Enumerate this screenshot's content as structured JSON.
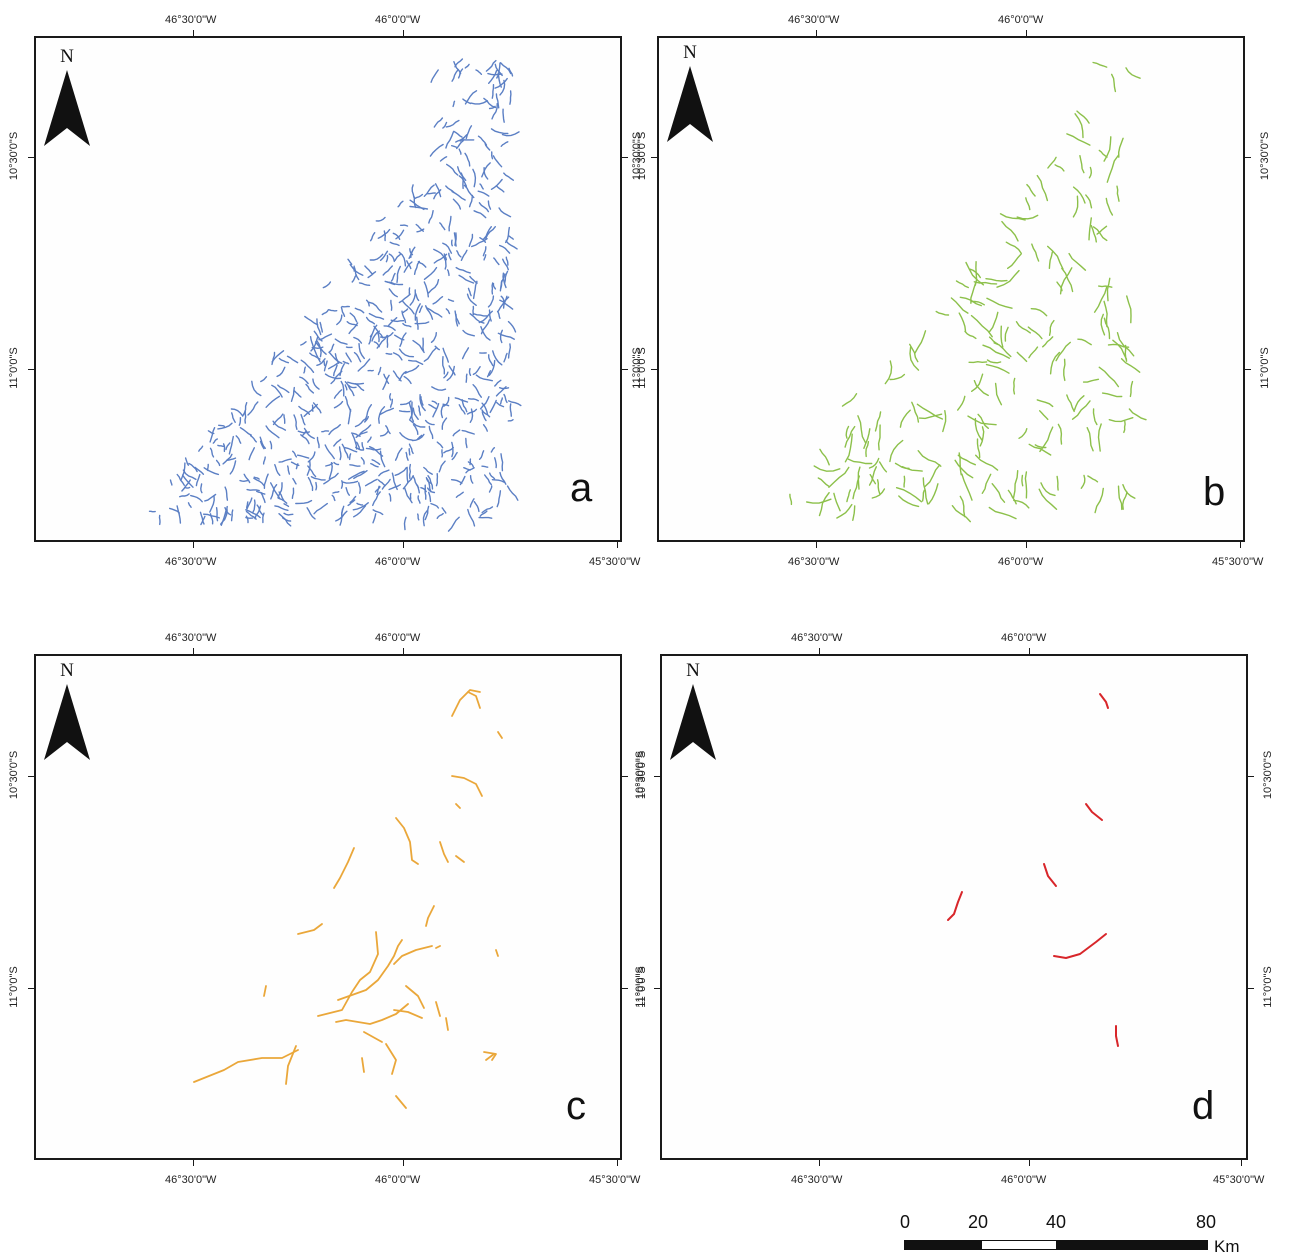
{
  "north_label": "N",
  "lon_labels": {
    "w4630": "46°30'0\"W",
    "w4600": "46°0'0\"W",
    "w4530": "45°30'0\"W"
  },
  "lat_labels": {
    "s1030": "10°30'0\"S",
    "s1100": "11°0'0\"S"
  },
  "panels": [
    {
      "id": "a",
      "letter": "a",
      "color": "#5b7fc4"
    },
    {
      "id": "b",
      "letter": "b",
      "color": "#8cc04a"
    },
    {
      "id": "c",
      "letter": "c",
      "color": "#eaa73a"
    },
    {
      "id": "d",
      "letter": "d",
      "color": "#d8262a"
    }
  ],
  "scale_bar": {
    "labels": [
      "0",
      "20",
      "40",
      "80"
    ],
    "unit": "Km"
  }
}
